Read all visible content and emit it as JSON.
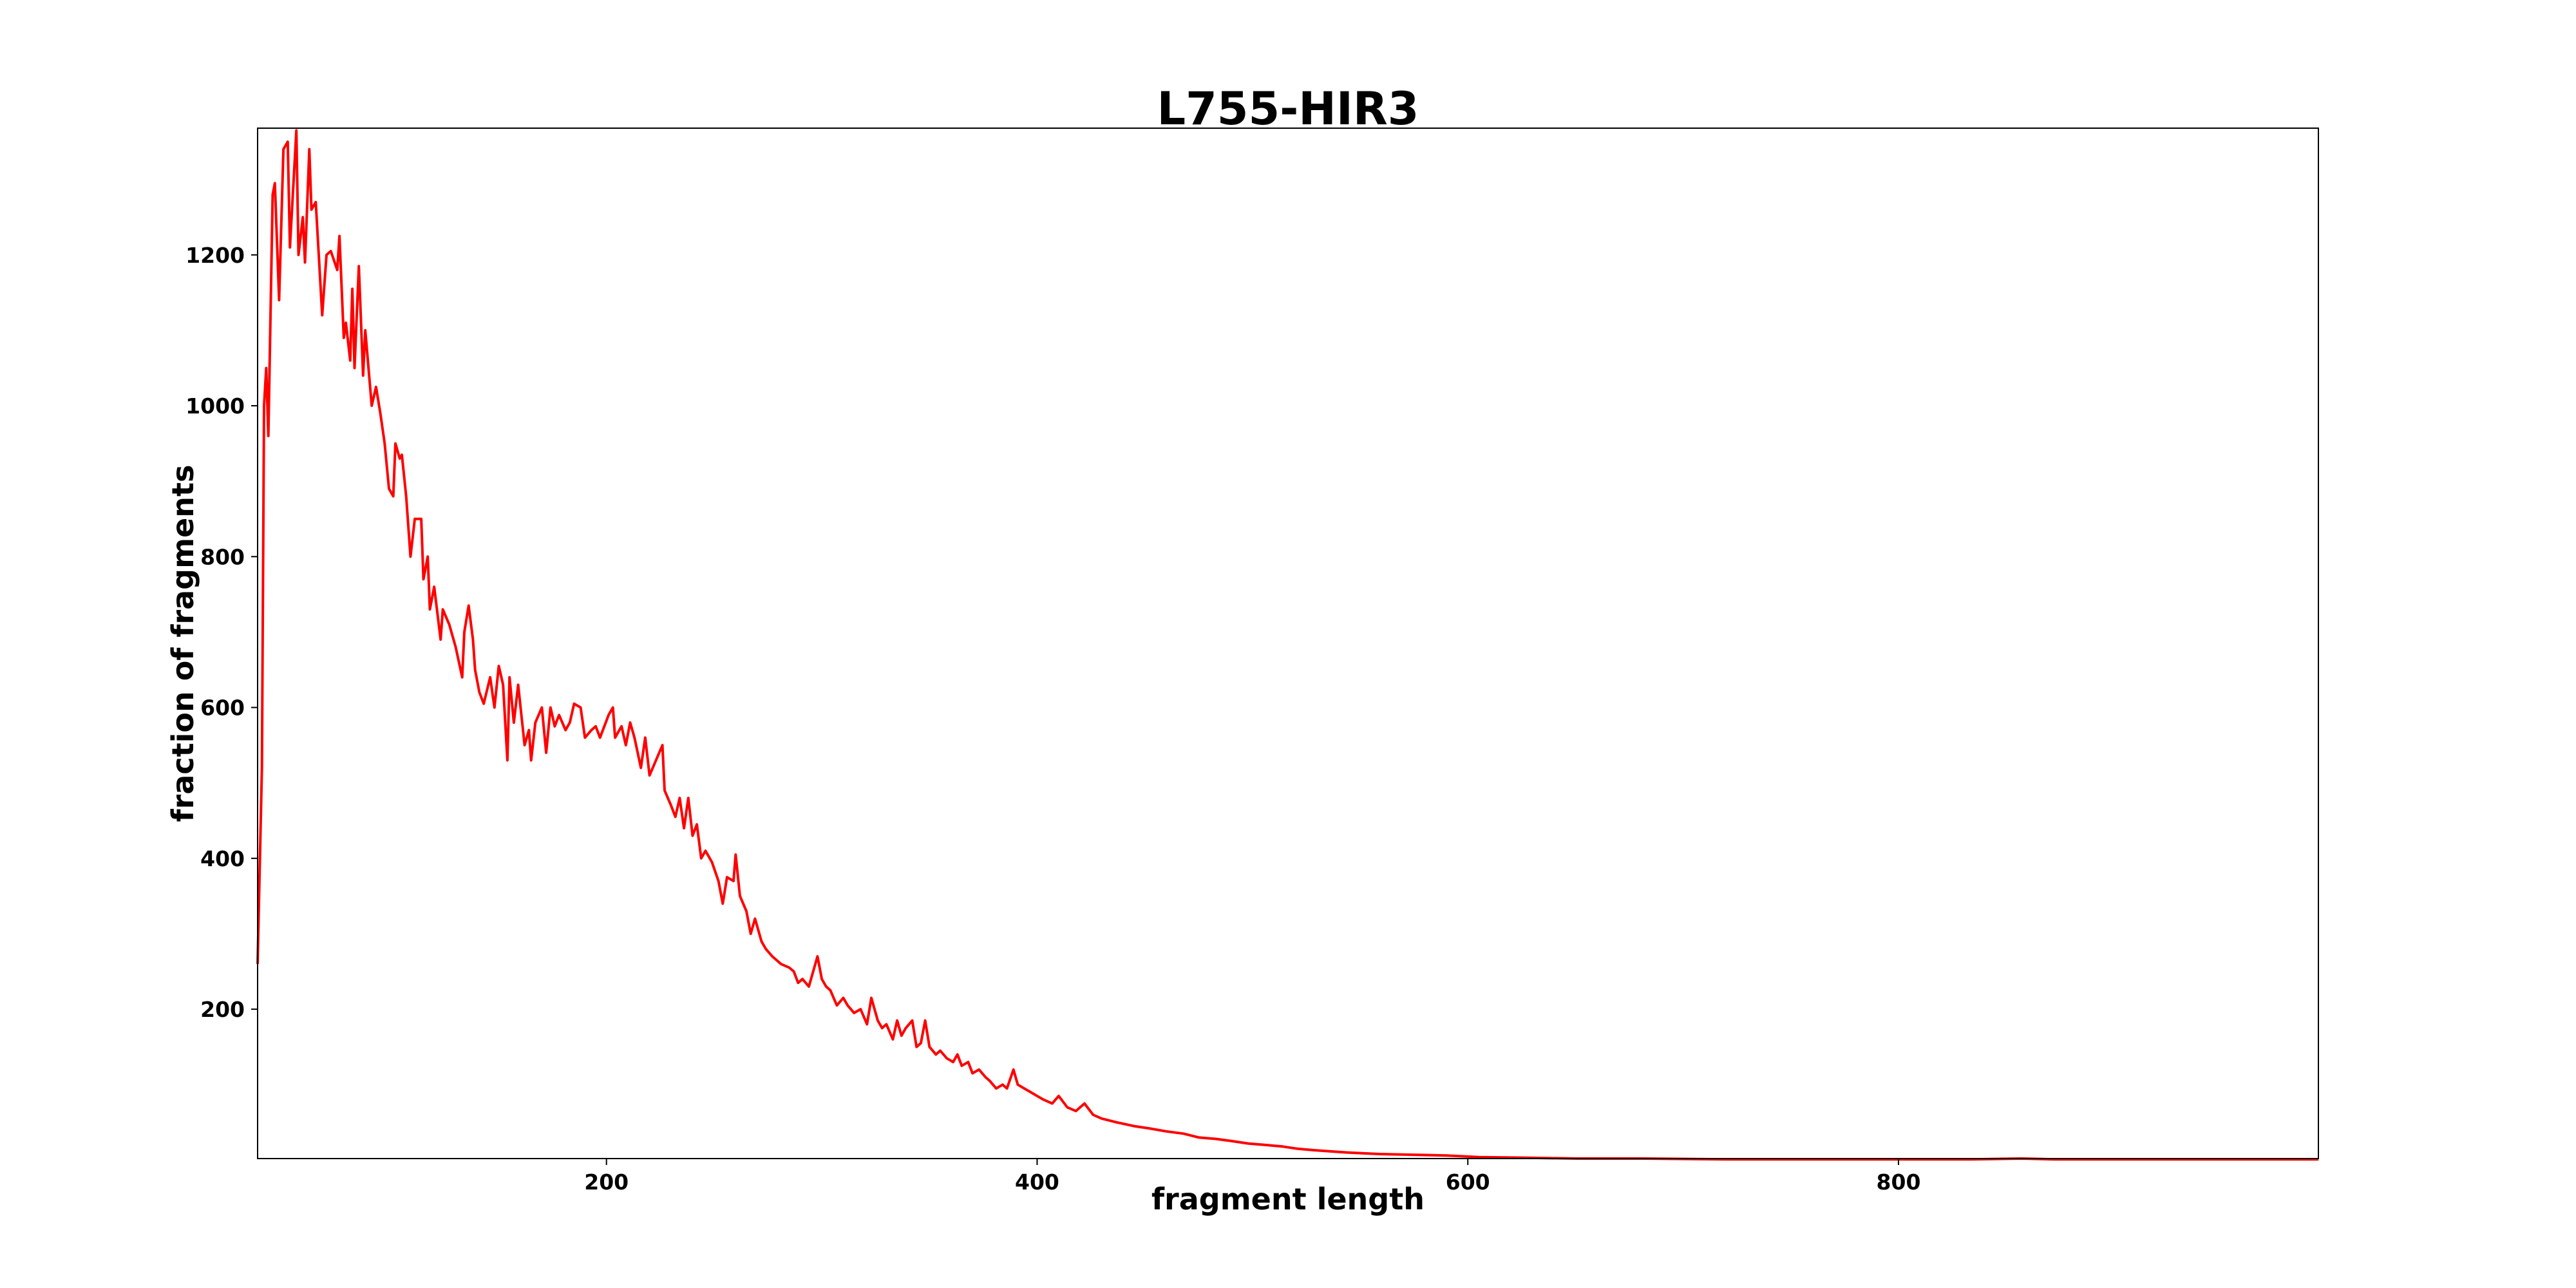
{
  "chart_data": {
    "type": "line",
    "title": "L755-HIR3",
    "xlabel": "fragment length",
    "ylabel": "fraction of fragments",
    "xlim": [
      38,
      995
    ],
    "ylim": [
      2,
      1368
    ],
    "xticks": [
      200,
      400,
      600,
      800
    ],
    "yticks": [
      200,
      400,
      600,
      800,
      1000,
      1200
    ],
    "grid": false,
    "line_color": "#ff0000",
    "series": [
      {
        "x": [
          38,
          40,
          41,
          42,
          43,
          45,
          46,
          48,
          50,
          52,
          53,
          56,
          57,
          59,
          60,
          62,
          63,
          65,
          68,
          70,
          72,
          75,
          76,
          78,
          79,
          81,
          82,
          83,
          85,
          87,
          88,
          91,
          93,
          95,
          97,
          99,
          101,
          102,
          104,
          105,
          107,
          109,
          111,
          114,
          115,
          117,
          118,
          120,
          123,
          124,
          127,
          130,
          133,
          134,
          136,
          138,
          139,
          141,
          143,
          146,
          148,
          150,
          152,
          154,
          155,
          157,
          159,
          162,
          164,
          165,
          167,
          170,
          172,
          174,
          176,
          178,
          181,
          183,
          185,
          188,
          190,
          193,
          195,
          197,
          201,
          203,
          204,
          207,
          209,
          211,
          213,
          216,
          218,
          220,
          223,
          226,
          227,
          230,
          232,
          234,
          236,
          238,
          240,
          242,
          244,
          246,
          249,
          252,
          254,
          256,
          259,
          260,
          262,
          265,
          267,
          269,
          272,
          274,
          277,
          279,
          281,
          285,
          287,
          289,
          291,
          294,
          296,
          298,
          300,
          302,
          304,
          307,
          310,
          312,
          315,
          318,
          321,
          323,
          326,
          328,
          330,
          333,
          335,
          337,
          339,
          342,
          344,
          346,
          348,
          350,
          353,
          355,
          358,
          361,
          363,
          365,
          368,
          370,
          373,
          376,
          378,
          381,
          384,
          386,
          389,
          391,
          394,
          397,
          400,
          403,
          407,
          410,
          414,
          418,
          422,
          426,
          430,
          437,
          445,
          452,
          460,
          468,
          475,
          483,
          491,
          498,
          506,
          514,
          521,
          529,
          544,
          559,
          575,
          590,
          605,
          628,
          651,
          681,
          719,
          758,
          834,
          857,
          872,
          910,
          995
        ],
        "y": [
          260,
          520,
          1000,
          1050,
          960,
          1280,
          1295,
          1140,
          1340,
          1350,
          1210,
          1365,
          1200,
          1250,
          1190,
          1340,
          1260,
          1270,
          1120,
          1200,
          1205,
          1180,
          1225,
          1090,
          1110,
          1060,
          1155,
          1050,
          1185,
          1040,
          1100,
          1000,
          1025,
          990,
          950,
          890,
          880,
          950,
          930,
          935,
          880,
          800,
          850,
          850,
          770,
          800,
          730,
          760,
          690,
          730,
          710,
          680,
          640,
          700,
          735,
          690,
          650,
          620,
          605,
          640,
          600,
          655,
          630,
          530,
          640,
          580,
          630,
          550,
          570,
          530,
          580,
          600,
          540,
          600,
          575,
          590,
          570,
          580,
          605,
          600,
          560,
          570,
          575,
          560,
          590,
          600,
          560,
          575,
          550,
          580,
          560,
          520,
          560,
          510,
          530,
          550,
          490,
          470,
          455,
          480,
          440,
          480,
          430,
          445,
          400,
          410,
          395,
          370,
          340,
          375,
          370,
          405,
          350,
          330,
          300,
          320,
          290,
          280,
          270,
          265,
          260,
          255,
          250,
          235,
          240,
          230,
          250,
          270,
          240,
          230,
          225,
          205,
          215,
          205,
          195,
          200,
          180,
          215,
          185,
          175,
          180,
          160,
          185,
          165,
          175,
          185,
          150,
          155,
          185,
          150,
          140,
          145,
          135,
          130,
          140,
          125,
          130,
          115,
          120,
          110,
          105,
          95,
          100,
          95,
          120,
          100,
          95,
          90,
          85,
          80,
          75,
          85,
          70,
          65,
          75,
          60,
          55,
          50,
          45,
          42,
          38,
          35,
          30,
          28,
          25,
          22,
          20,
          18,
          15,
          13,
          10,
          8,
          7,
          6,
          4,
          3,
          2,
          2,
          1,
          1,
          1,
          2,
          1,
          1,
          1
        ]
      }
    ]
  }
}
